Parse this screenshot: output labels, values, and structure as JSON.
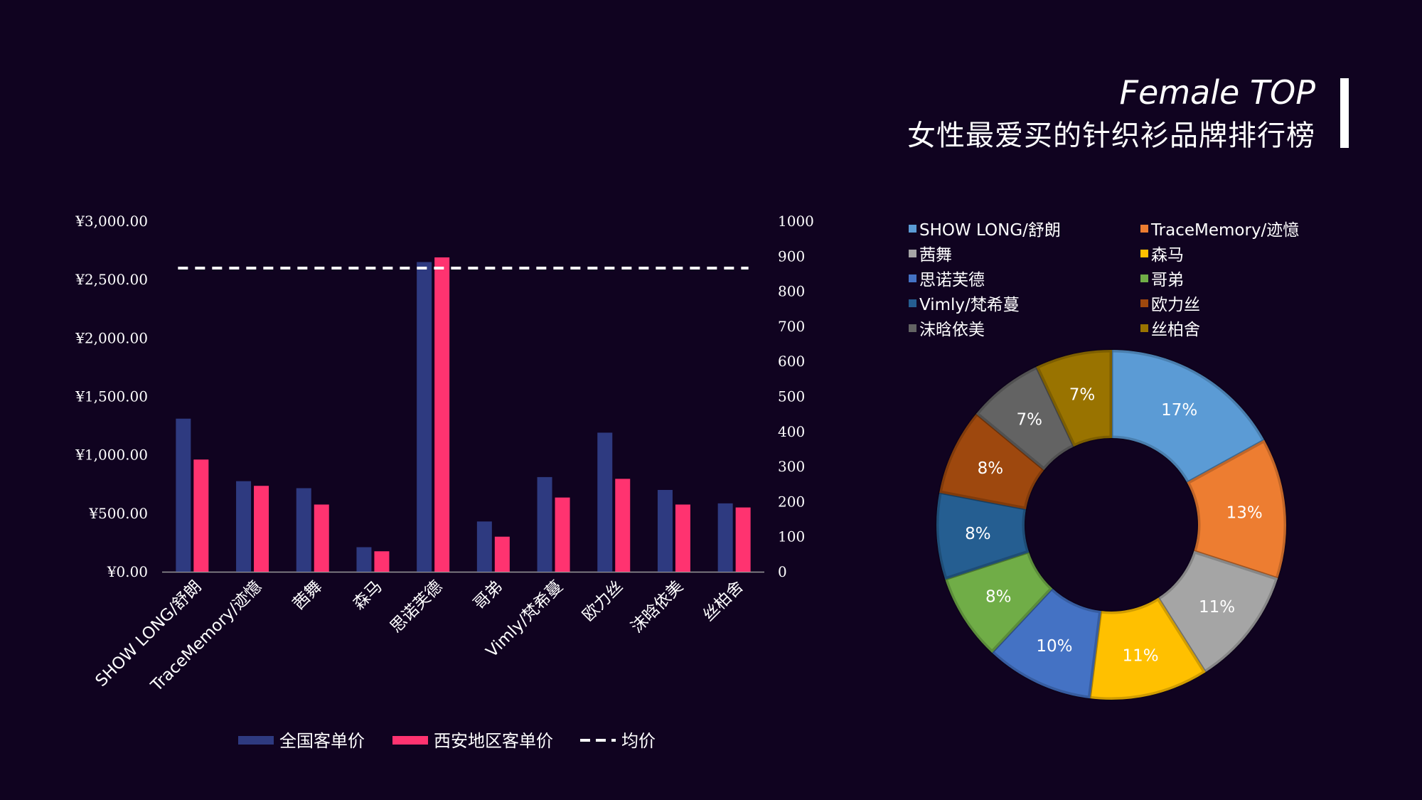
{
  "title": {
    "en": "Female TOP",
    "cn": "女性最爱买的针织衫品牌排行榜"
  },
  "chart_data": [
    {
      "type": "bar",
      "categories": [
        "SHOW LONG/舒朗",
        "TraceMemory/迹憶",
        "茜舞",
        "森马",
        "思诺芙德",
        "哥弟",
        "Vimly/梵希蔓",
        "欧力丝",
        "沫晗依美",
        "丝柏舍"
      ],
      "series": [
        {
          "name": "全国客单价",
          "color": "#2E3A80",
          "axis": "left",
          "values": [
            1310,
            775,
            715,
            210,
            2650,
            430,
            810,
            1190,
            700,
            585
          ]
        },
        {
          "name": "西安地区客单价",
          "color": "#FF3370",
          "axis": "left",
          "values": [
            960,
            735,
            575,
            175,
            2690,
            300,
            635,
            795,
            575,
            550
          ]
        },
        {
          "name": "均价",
          "color": "#FFFFFF",
          "style": "dashed",
          "axis": "right",
          "values": [
            866,
            866,
            866,
            866,
            866,
            866,
            866,
            866,
            866,
            866
          ]
        }
      ],
      "y_left": {
        "ticks": [
          "¥0.00",
          "¥500.00",
          "¥1,000.00",
          "¥1,500.00",
          "¥2,000.00",
          "¥2,500.00",
          "¥3,000.00"
        ],
        "ylim": [
          0,
          3000
        ]
      },
      "y_right": {
        "ticks": [
          "0",
          "100",
          "200",
          "300",
          "400",
          "500",
          "600",
          "700",
          "800",
          "900",
          "1000"
        ],
        "ylim": [
          0,
          1000
        ]
      },
      "legend_placement": "bottom"
    },
    {
      "type": "pie",
      "donut": true,
      "labels": [
        "SHOW LONG/舒朗",
        "TraceMemory/迹憶",
        "茜舞",
        "森马",
        "思诺芙德",
        "哥弟",
        "Vimly/梵希蔓",
        "欧力丝",
        "沫晗依美",
        "丝柏舍"
      ],
      "values": [
        17,
        13,
        11,
        11,
        10,
        8,
        8,
        8,
        7,
        7
      ],
      "value_labels": [
        "17%",
        "13%",
        "11%",
        "11%",
        "10%",
        "8%",
        "8%",
        "8%",
        "7%",
        "7%"
      ],
      "colors": [
        "#5B9BD5",
        "#ED7D31",
        "#A5A5A5",
        "#FFC000",
        "#4472C4",
        "#70AD47",
        "#255E91",
        "#9E480E",
        "#636363",
        "#997300"
      ],
      "legend_placement": "top"
    }
  ]
}
